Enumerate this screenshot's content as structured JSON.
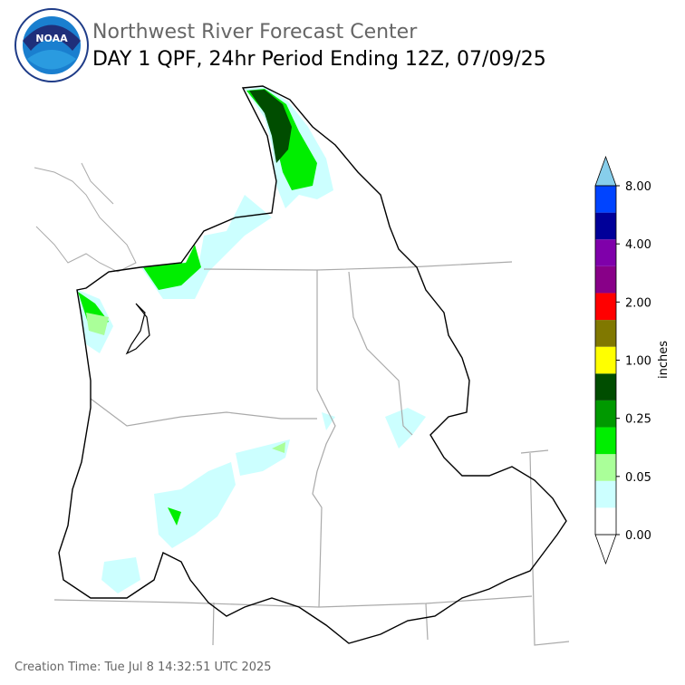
{
  "header": {
    "org": "Northwest River Forecast Center",
    "title": "DAY 1 QPF, 24hr Period Ending 12Z, 07/09/25"
  },
  "legend": {
    "label": "inches",
    "colors": [
      "#ffffff",
      "#ccffff",
      "#aaff99",
      "#00ee00",
      "#009900",
      "#004d00",
      "#ffff00",
      "#807800",
      "#ff0000",
      "#880088",
      "#7f00aa",
      "#000099",
      "#0044ff"
    ],
    "over_color": "#87ceeb",
    "ticks": [
      "0.00",
      "0.05",
      "0.25",
      "1.00",
      "2.00",
      "4.00",
      "8.00"
    ]
  },
  "footer": "Creation Time: Tue Jul 8 14:32:51 UTC 2025"
}
